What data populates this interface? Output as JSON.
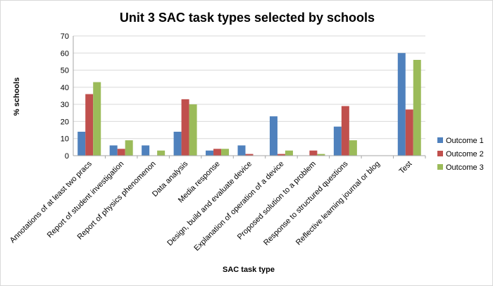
{
  "chart_data": {
    "type": "bar",
    "title": "Unit 3 SAC task types selected by schools",
    "xlabel": "SAC task type",
    "ylabel": "% schools",
    "ylim": [
      0,
      70
    ],
    "ytick_step": 10,
    "grid": true,
    "legend_position": "right",
    "categories": [
      "Annotations of at least two pracs",
      "Report of student investigation",
      "Report of physics phenomenon",
      "Data analysis",
      "Media response",
      "Design, build and evaluate device",
      "Explanation of operation of a device",
      "Proposed solution to a problem",
      "Response to structured questions",
      "Reflective learning journal or blog",
      "Test"
    ],
    "series": [
      {
        "name": "Outcome 1",
        "color": "#4f81bd",
        "values": [
          14,
          6,
          6,
          14,
          3,
          6,
          23,
          0,
          17,
          0,
          60
        ]
      },
      {
        "name": "Outcome 2",
        "color": "#c0504d",
        "values": [
          36,
          4,
          0,
          33,
          4,
          1,
          1,
          3,
          29,
          0,
          27
        ]
      },
      {
        "name": "Outcome 3",
        "color": "#9bbb59",
        "values": [
          43,
          9,
          3,
          30,
          4,
          0,
          3,
          1,
          9,
          0,
          56
        ]
      }
    ]
  }
}
